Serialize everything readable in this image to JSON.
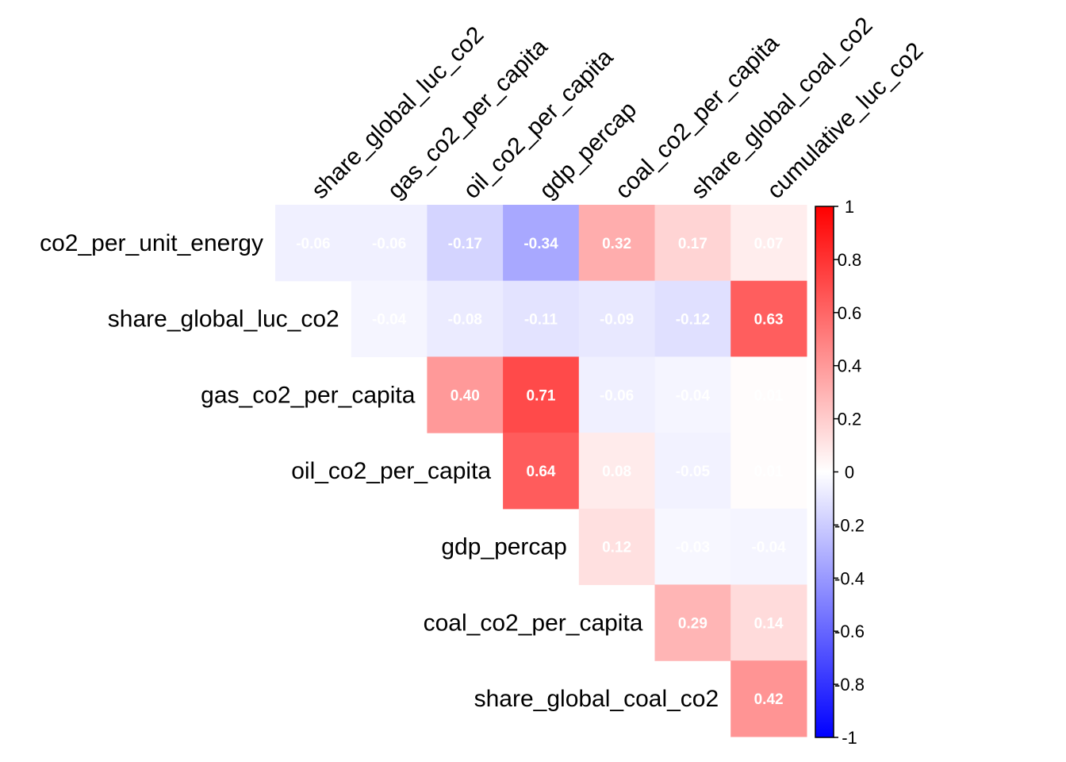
{
  "chart_data": {
    "type": "heatmap",
    "title": "",
    "xlabel": "",
    "ylabel": "",
    "row_labels": [
      "co2_per_unit_energy",
      "share_global_luc_co2",
      "gas_co2_per_capita",
      "oil_co2_per_capita",
      "gdp_percap",
      "coal_co2_per_capita",
      "share_global_coal_co2"
    ],
    "col_labels": [
      "share_global_luc_co2",
      "gas_co2_per_capita",
      "oil_co2_per_capita",
      "gdp_percap",
      "coal_co2_per_capita",
      "share_global_coal_co2",
      "cumulative_luc_co2"
    ],
    "values": [
      [
        -0.06,
        -0.06,
        -0.17,
        -0.34,
        0.32,
        0.17,
        0.07
      ],
      [
        null,
        -0.04,
        -0.08,
        -0.11,
        -0.09,
        -0.12,
        0.63
      ],
      [
        null,
        null,
        0.4,
        0.71,
        -0.06,
        -0.04,
        0.01
      ],
      [
        null,
        null,
        null,
        0.64,
        0.08,
        -0.05,
        0.01
      ],
      [
        null,
        null,
        null,
        null,
        0.12,
        -0.03,
        -0.04
      ],
      [
        null,
        null,
        null,
        null,
        null,
        0.29,
        0.14
      ],
      [
        null,
        null,
        null,
        null,
        null,
        null,
        0.42
      ]
    ],
    "labels": [
      [
        "-0.06",
        "-0.06",
        "-0.17",
        "-0.34",
        "0.32",
        "0.17",
        "0.07"
      ],
      [
        null,
        "-0.04",
        "-0.08",
        "-0.11",
        "-0.09",
        "-0.12",
        "0.63"
      ],
      [
        null,
        null,
        "0.40",
        "0.71",
        "-0.06",
        "-0.04",
        "0.01"
      ],
      [
        null,
        null,
        null,
        "0.64",
        "0.08",
        "-0.05",
        "0.01"
      ],
      [
        null,
        null,
        null,
        null,
        "0.12",
        "-0.03",
        "-0.04"
      ],
      [
        null,
        null,
        null,
        null,
        null,
        "0.29",
        "0.14"
      ],
      [
        null,
        null,
        null,
        null,
        null,
        null,
        "0.42"
      ]
    ],
    "color_scale": {
      "min": -1,
      "max": 1,
      "colors": {
        "negative": "#0000ff",
        "zero": "#ffffff",
        "positive": "#ff0000"
      },
      "ticks": [
        "1",
        "0.8",
        "0.6",
        "0.4",
        "0.2",
        "0",
        "-0.2",
        "-0.4",
        "-0.6",
        "-0.8",
        "-1"
      ]
    },
    "legend_position": "right",
    "grid": false
  }
}
